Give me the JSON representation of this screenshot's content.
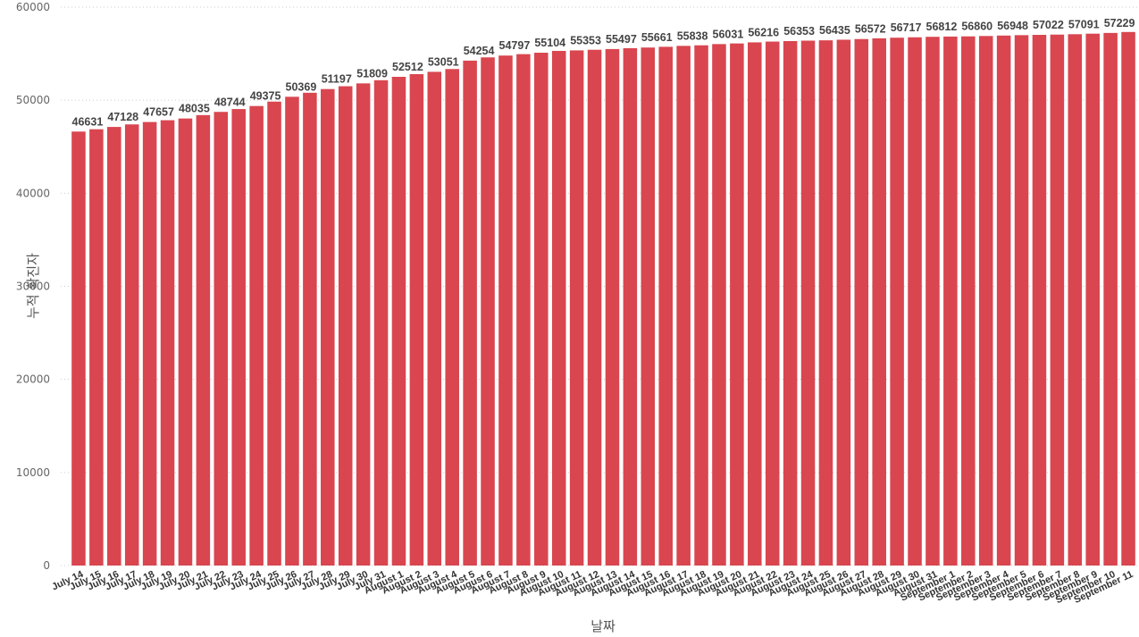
{
  "chart_data": {
    "type": "bar",
    "x_label": "날짜",
    "y_label": "누적 확진자",
    "categories": [
      "July 14",
      "July 15",
      "July 16",
      "July 17",
      "July 18",
      "July 19",
      "July 20",
      "July 21",
      "July 22",
      "July 23",
      "July 24",
      "July 25",
      "July 26",
      "July 27",
      "July 28",
      "July 29",
      "July 30",
      "July 31",
      "August 1",
      "August 2",
      "August 3",
      "August 4",
      "August 5",
      "August 6",
      "August 7",
      "August 8",
      "August 9",
      "August 10",
      "August 11",
      "August 12",
      "August 13",
      "August 14",
      "August 15",
      "August 16",
      "August 17",
      "August 18",
      "August 19",
      "August 20",
      "August 21",
      "August 22",
      "August 23",
      "August 24",
      "August 25",
      "August 26",
      "August 27",
      "August 28",
      "August 29",
      "August 30",
      "August 31",
      "September 1",
      "September 2",
      "September 3",
      "September 4",
      "September 5",
      "September 6",
      "September 7",
      "September 8",
      "September 9",
      "September 10",
      "September 11"
    ],
    "values": [
      46631,
      46880,
      47128,
      47400,
      47657,
      47850,
      48035,
      48400,
      48744,
      49050,
      49375,
      49850,
      50369,
      50800,
      51197,
      51500,
      51809,
      52150,
      52512,
      52800,
      53051,
      53350,
      54254,
      54600,
      54797,
      54950,
      55104,
      55300,
      55353,
      55420,
      55497,
      55590,
      55661,
      55740,
      55838,
      55900,
      56031,
      56100,
      56216,
      56300,
      56353,
      56400,
      56435,
      56500,
      56572,
      56650,
      56717,
      56760,
      56812,
      56840,
      56860,
      56900,
      56948,
      56990,
      57022,
      57050,
      57091,
      57150,
      57229,
      57330
    ],
    "value_labels": [
      "46631",
      null,
      "47128",
      null,
      "47657",
      null,
      "48035",
      null,
      "48744",
      null,
      "49375",
      null,
      "50369",
      null,
      "51197",
      null,
      "51809",
      null,
      "52512",
      null,
      "53051",
      null,
      "54254",
      null,
      "54797",
      null,
      "55104",
      null,
      "55353",
      null,
      "55497",
      null,
      "55661",
      null,
      "55838",
      null,
      "56031",
      null,
      "56216",
      null,
      "56353",
      null,
      "56435",
      null,
      "56572",
      null,
      "56717",
      null,
      "56812",
      null,
      "56860",
      null,
      "56948",
      null,
      "57022",
      null,
      "57091",
      null,
      "57229",
      null
    ],
    "color": "#d9464f",
    "ylim": [
      0,
      60000
    ],
    "yticks": [
      0,
      10000,
      20000,
      30000,
      40000,
      50000,
      60000
    ],
    "grid": true
  }
}
